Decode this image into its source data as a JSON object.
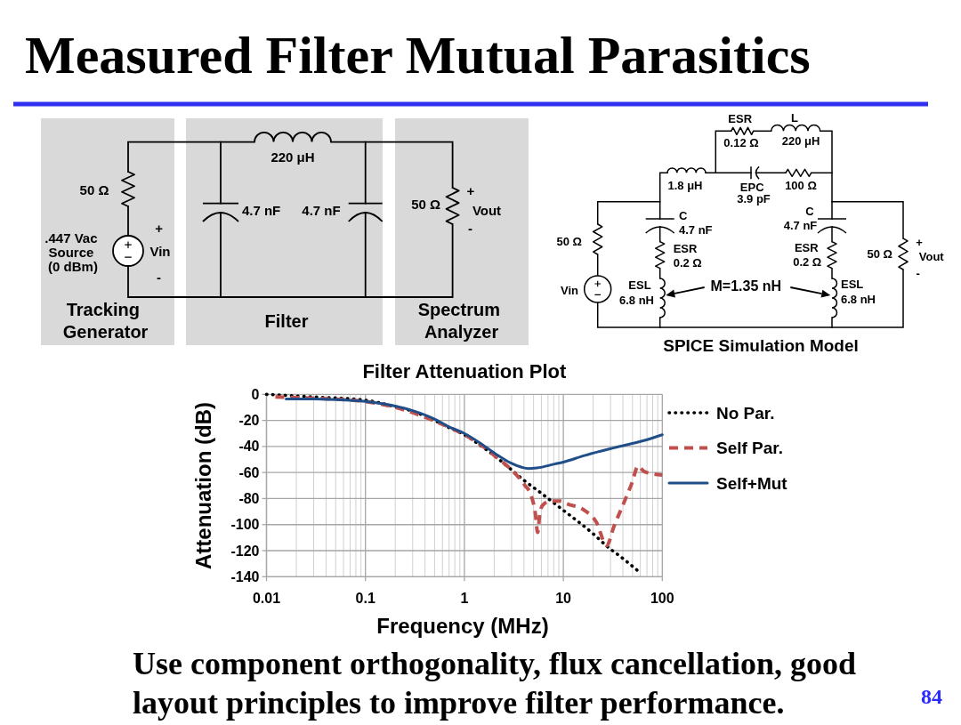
{
  "chart_data": [
    {
      "type": "other",
      "title": "Measured Filter Mutual Parasitics",
      "annotations": [
        "Use component orthogonality, flux cancellation, good layout principles to improve filter performance.",
        "84"
      ]
    },
    {
      "type": "other",
      "annotations": [
        "50 Ω",
        ".447 Vac Source (0 dBm)",
        "+",
        "Vin",
        "-",
        "220 μH",
        "4.7 nF",
        "4.7 nF",
        "50 Ω",
        "+",
        "Vout",
        "-",
        "Tracking Generator",
        "Filter",
        "Spectrum Analyzer"
      ]
    },
    {
      "type": "other",
      "title": "SPICE Simulation Model",
      "annotations": [
        "ESR",
        "L",
        "0.12 Ω",
        "220 μH",
        "1.8 μH",
        "EPC 3.9 pF",
        "100 Ω",
        "C 4.7 nF",
        "C 4.7 nF",
        "ESR 0.2 Ω",
        "ESR 0.2 Ω",
        "50 Ω",
        "Vin",
        "ESL 6.8 nH",
        "M=1.35 nH",
        "ESL 6.8 nH",
        "50 Ω",
        "+",
        "Vout",
        "-"
      ]
    },
    {
      "type": "line",
      "title": "Filter Attenuation Plot",
      "xlabel": "Frequency (MHz)",
      "ylabel": "Attenuation (dB)",
      "log": "x",
      "grid": true,
      "legend": "right",
      "xlim": [
        0.01,
        100
      ],
      "ylim": [
        -140,
        0
      ],
      "xticks": [
        0.01,
        {
          "value": 0.02,
          "label": null
        },
        {
          "value": 0.03,
          "label": null
        },
        {
          "value": 0.04,
          "label": null
        },
        {
          "value": 0.05,
          "label": null
        },
        {
          "value": 0.06,
          "label": null
        },
        {
          "value": 0.07,
          "label": null
        },
        {
          "value": 0.08,
          "label": null
        },
        {
          "value": 0.09,
          "label": null
        },
        0.1,
        {
          "value": 0.2,
          "label": null
        },
        {
          "value": 0.3,
          "label": null
        },
        {
          "value": 0.4,
          "label": null
        },
        {
          "value": 0.5,
          "label": null
        },
        {
          "value": 0.6,
          "label": null
        },
        {
          "value": 0.7,
          "label": null
        },
        {
          "value": 0.8,
          "label": null
        },
        {
          "value": 0.9,
          "label": null
        },
        1,
        {
          "value": 2,
          "label": null
        },
        {
          "value": 3,
          "label": null
        },
        {
          "value": 4,
          "label": null
        },
        {
          "value": 5,
          "label": null
        },
        {
          "value": 6,
          "label": null
        },
        {
          "value": 7,
          "label": null
        },
        {
          "value": 8,
          "label": null
        },
        {
          "value": 9,
          "label": null
        },
        10,
        {
          "value": 20,
          "label": null
        },
        {
          "value": 30,
          "label": null
        },
        {
          "value": 40,
          "label": null
        },
        {
          "value": 50,
          "label": null
        },
        {
          "value": 60,
          "label": null
        },
        {
          "value": 70,
          "label": null
        },
        {
          "value": 80,
          "label": null
        },
        {
          "value": 90,
          "label": null
        },
        100
      ],
      "yticks": [
        0,
        -20,
        -40,
        -60,
        -80,
        -100,
        -120,
        -140
      ],
      "series": [
        {
          "name": "No Par.",
          "color": "#000000",
          "line_style": "dotted",
          "x": [
            0.01,
            0.03,
            0.1,
            0.2,
            0.3,
            0.5,
            0.7,
            1,
            1.5,
            2,
            3,
            4,
            6,
            10,
            20,
            28,
            40,
            60
          ],
          "values": [
            0,
            -2,
            -4.5,
            -9.5,
            -13,
            -20,
            -25.5,
            -31,
            -40,
            -47,
            -58,
            -66,
            -76,
            -89,
            -107,
            -117,
            -126,
            -137
          ]
        },
        {
          "name": "Self Par.",
          "color": "#c0504d",
          "line_style": "dashed",
          "x": [
            0.0123,
            0.03,
            0.1,
            0.2,
            0.5,
            1,
            1.45,
            2.05,
            2.9,
            4.1,
            4.7,
            5.2,
            5.5,
            5.8,
            6.2,
            7.4,
            9.4,
            10.8,
            16.3,
            21.5,
            27.4,
            32.6,
            40,
            49.4,
            57,
            65,
            80,
            100
          ],
          "values": [
            -2,
            -3,
            -5.5,
            -10,
            -20.5,
            -31,
            -38.5,
            -47.5,
            -57,
            -70,
            -77,
            -91,
            -106,
            -91,
            -85,
            -82,
            -82,
            -84,
            -89,
            -98,
            -116,
            -101,
            -85,
            -68,
            -55,
            -59,
            -61,
            -62
          ]
        },
        {
          "name": "Self+Mut",
          "color": "#1f4e89",
          "line_style": "solid",
          "x": [
            0.0158,
            0.03,
            0.05,
            0.1,
            0.2,
            0.3,
            0.5,
            0.7,
            1,
            1.45,
            2.05,
            2.9,
            3.8,
            4.4,
            5.4,
            8.2,
            10,
            16.3,
            32.6,
            65,
            100
          ],
          "values": [
            -3.5,
            -3.5,
            -4,
            -5.5,
            -9,
            -12.5,
            -19,
            -25,
            -30,
            -37.5,
            -45.5,
            -52.5,
            -56,
            -57,
            -56.5,
            -53.5,
            -52,
            -47,
            -41,
            -35.5,
            -31
          ]
        }
      ]
    }
  ]
}
